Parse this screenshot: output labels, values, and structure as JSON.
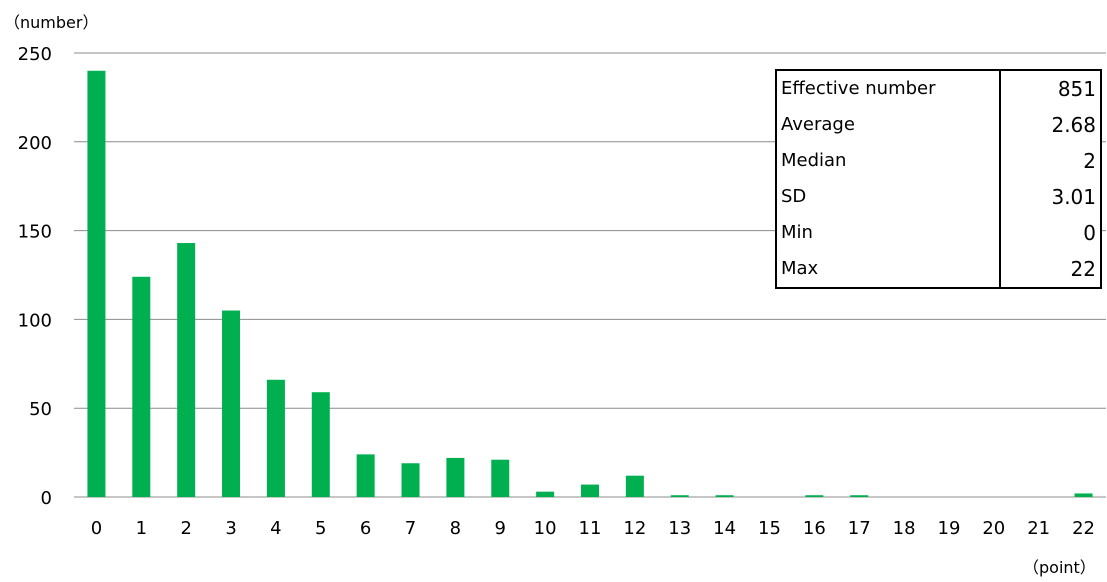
{
  "chart_data": {
    "type": "bar",
    "ylabel": "（number）",
    "xlabel": "（point）",
    "ylim": [
      0,
      250
    ],
    "yticks": [
      0,
      50,
      100,
      150,
      200,
      250
    ],
    "grid": true,
    "bar_color": "#00b050",
    "categories": [
      "0",
      "1",
      "2",
      "3",
      "4",
      "5",
      "6",
      "7",
      "8",
      "9",
      "10",
      "11",
      "12",
      "13",
      "14",
      "15",
      "16",
      "17",
      "18",
      "19",
      "20",
      "21",
      "22"
    ],
    "values": [
      240,
      124,
      143,
      105,
      66,
      59,
      24,
      19,
      22,
      21,
      3,
      7,
      12,
      1,
      1,
      0,
      1,
      1,
      0,
      0,
      0,
      0,
      2
    ]
  },
  "stats": [
    {
      "label": "Effective number",
      "value": "851"
    },
    {
      "label": "Average",
      "value": "2.68"
    },
    {
      "label": "Median",
      "value": "2"
    },
    {
      "label": "SD",
      "value": "3.01"
    },
    {
      "label": "Min",
      "value": "0"
    },
    {
      "label": "Max",
      "value": "22"
    }
  ]
}
